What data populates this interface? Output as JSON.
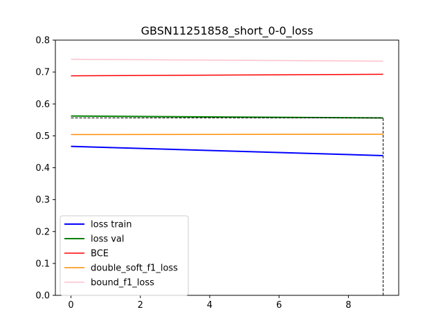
{
  "chart_data": {
    "type": "line",
    "title": "GBSN11251858_short_0-0_loss",
    "xlabel": "",
    "ylabel": "",
    "xlim": [
      -0.45,
      9.45
    ],
    "ylim": [
      0.0,
      0.8
    ],
    "xticks": [
      0,
      2,
      4,
      6,
      8
    ],
    "yticks": [
      0.0,
      0.1,
      0.2,
      0.3,
      0.4,
      0.5,
      0.6,
      0.7,
      0.8
    ],
    "xtick_labels": [
      "0",
      "2",
      "4",
      "6",
      "8"
    ],
    "ytick_labels": [
      "0.0",
      "0.1",
      "0.2",
      "0.3",
      "0.4",
      "0.5",
      "0.6",
      "0.7",
      "0.8"
    ],
    "grid": false,
    "legend_position": "lower-left",
    "series": [
      {
        "name": "loss train",
        "color": "#0000ff",
        "width": 2,
        "x": [
          0,
          9
        ],
        "y": [
          0.467,
          0.438
        ]
      },
      {
        "name": "loss val",
        "color": "#008000",
        "width": 2,
        "x": [
          0,
          9
        ],
        "y": [
          0.562,
          0.556
        ]
      },
      {
        "name": "BCE",
        "color": "#ff0000",
        "width": 1.5,
        "x": [
          0,
          9
        ],
        "y": [
          0.688,
          0.693
        ]
      },
      {
        "name": "double_soft_f1_loss",
        "color": "#ff8c00",
        "width": 1.5,
        "x": [
          0,
          9
        ],
        "y": [
          0.504,
          0.505
        ]
      },
      {
        "name": "bound_f1_loss",
        "color": "#ffc0cb",
        "width": 1.5,
        "x": [
          0,
          9
        ],
        "y": [
          0.74,
          0.734
        ]
      }
    ],
    "reference_lines": [
      {
        "kind": "horizontal",
        "style": "dashed",
        "color": "#000000",
        "x": [
          0,
          9
        ],
        "y": [
          0.556,
          0.556
        ]
      },
      {
        "kind": "vertical",
        "style": "dashed",
        "color": "#000000",
        "x": [
          9,
          9
        ],
        "y": [
          0.0,
          0.556
        ]
      }
    ]
  }
}
